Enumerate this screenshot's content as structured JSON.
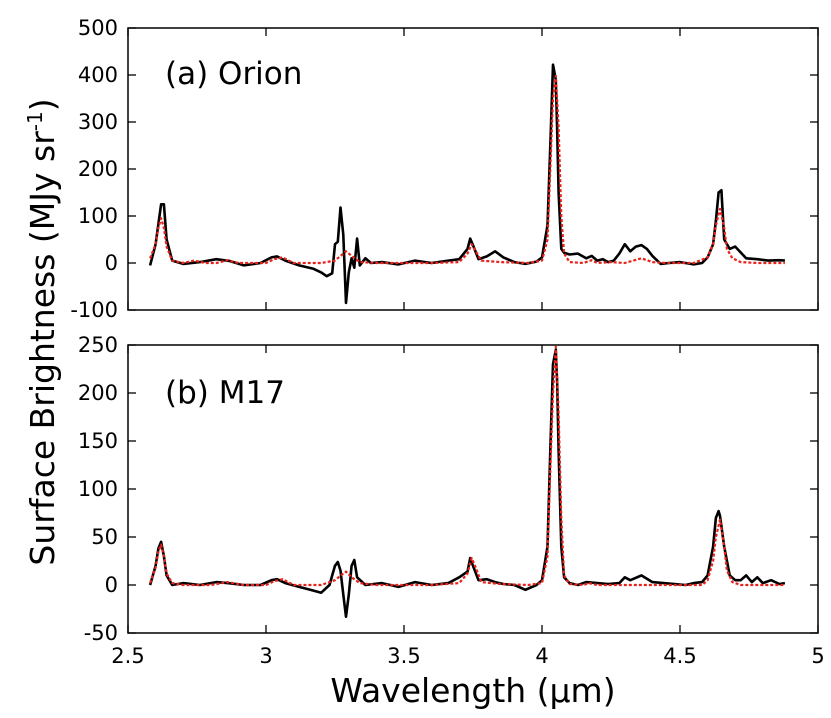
{
  "chart_data": [
    {
      "type": "line",
      "panel_label": "(a) Orion",
      "ylim": [
        -100,
        500
      ],
      "yticks": [
        "-100",
        "0",
        "100",
        "200",
        "300",
        "400",
        "500"
      ],
      "xlim": [
        2.5,
        5
      ],
      "grid": false,
      "series": [
        {
          "color": "#000000",
          "style": "solid",
          "x": [
            2.58,
            2.6,
            2.62,
            2.63,
            2.64,
            2.66,
            2.7,
            2.76,
            2.82,
            2.87,
            2.92,
            2.98,
            3.02,
            3.04,
            3.07,
            3.12,
            3.17,
            3.2,
            3.22,
            3.24,
            3.25,
            3.26,
            3.27,
            3.28,
            3.29,
            3.3,
            3.31,
            3.32,
            3.33,
            3.34,
            3.36,
            3.38,
            3.42,
            3.48,
            3.54,
            3.6,
            3.66,
            3.7,
            3.73,
            3.74,
            3.75,
            3.77,
            3.8,
            3.83,
            3.86,
            3.9,
            3.94,
            3.98,
            4.0,
            4.02,
            4.03,
            4.04,
            4.05,
            4.055,
            4.06,
            4.07,
            4.08,
            4.1,
            4.13,
            4.16,
            4.18,
            4.2,
            4.22,
            4.24,
            4.26,
            4.28,
            4.3,
            4.32,
            4.34,
            4.36,
            4.38,
            4.4,
            4.43,
            4.46,
            4.5,
            4.55,
            4.58,
            4.6,
            4.62,
            4.63,
            4.64,
            4.65,
            4.66,
            4.68,
            4.7,
            4.74,
            4.78,
            4.82,
            4.86,
            4.88
          ],
          "y": [
            -5,
            40,
            125,
            125,
            50,
            5,
            -2,
            2,
            8,
            4,
            -5,
            0,
            12,
            14,
            5,
            -5,
            -12,
            -20,
            -28,
            -22,
            40,
            45,
            118,
            60,
            -85,
            -20,
            10,
            -10,
            52,
            -5,
            10,
            0,
            2,
            -3,
            5,
            0,
            5,
            8,
            30,
            52,
            38,
            8,
            14,
            25,
            12,
            2,
            -2,
            3,
            12,
            80,
            250,
            422,
            390,
            280,
            150,
            30,
            22,
            18,
            20,
            10,
            15,
            5,
            8,
            2,
            5,
            20,
            40,
            25,
            35,
            38,
            30,
            15,
            -2,
            0,
            2,
            -3,
            0,
            12,
            40,
            90,
            150,
            155,
            50,
            30,
            35,
            10,
            8,
            5,
            6,
            5
          ]
        },
        {
          "color": "#e8221b",
          "style": "dotted",
          "x": [
            2.58,
            2.6,
            2.61,
            2.62,
            2.63,
            2.64,
            2.66,
            2.7,
            2.74,
            2.78,
            2.82,
            2.86,
            2.9,
            2.95,
            3.0,
            3.03,
            3.06,
            3.1,
            3.2,
            3.25,
            3.28,
            3.29,
            3.31,
            3.34,
            3.4,
            3.5,
            3.6,
            3.7,
            3.73,
            3.745,
            3.76,
            3.78,
            3.85,
            3.95,
            4.0,
            4.02,
            4.03,
            4.04,
            4.05,
            4.06,
            4.07,
            4.08,
            4.1,
            4.15,
            4.18,
            4.2,
            4.25,
            4.3,
            4.36,
            4.4,
            4.45,
            4.55,
            4.6,
            4.62,
            4.63,
            4.645,
            4.66,
            4.67,
            4.69,
            4.72,
            4.78,
            4.88
          ],
          "y": [
            10,
            40,
            75,
            95,
            75,
            35,
            5,
            0,
            5,
            0,
            0,
            6,
            0,
            0,
            0,
            8,
            12,
            0,
            0,
            5,
            20,
            25,
            15,
            2,
            0,
            0,
            0,
            2,
            20,
            40,
            25,
            5,
            2,
            0,
            5,
            50,
            200,
            350,
            398,
            290,
            100,
            20,
            2,
            0,
            6,
            0,
            2,
            0,
            10,
            2,
            0,
            0,
            12,
            40,
            80,
            115,
            75,
            30,
            10,
            2,
            0,
            0
          ]
        }
      ]
    },
    {
      "type": "line",
      "panel_label": "(b) M17",
      "ylim": [
        -50,
        250
      ],
      "yticks": [
        "-50",
        "0",
        "50",
        "100",
        "150",
        "200",
        "250"
      ],
      "xlim": [
        2.5,
        5
      ],
      "xticks": [
        "2.5",
        "3",
        "3.5",
        "4",
        "4.5",
        "5"
      ],
      "xlabel": "Wavelength (µm)",
      "grid": false,
      "series": [
        {
          "color": "#000000",
          "style": "solid",
          "x": [
            2.58,
            2.6,
            2.61,
            2.62,
            2.63,
            2.64,
            2.66,
            2.7,
            2.76,
            2.82,
            2.86,
            2.92,
            2.98,
            3.02,
            3.04,
            3.07,
            3.12,
            3.16,
            3.2,
            3.23,
            3.24,
            3.25,
            3.26,
            3.27,
            3.28,
            3.29,
            3.3,
            3.31,
            3.32,
            3.33,
            3.36,
            3.42,
            3.48,
            3.54,
            3.6,
            3.66,
            3.7,
            3.73,
            3.74,
            3.75,
            3.77,
            3.8,
            3.83,
            3.86,
            3.9,
            3.94,
            3.98,
            4.0,
            4.02,
            4.03,
            4.04,
            4.05,
            4.055,
            4.06,
            4.07,
            4.08,
            4.1,
            4.13,
            4.16,
            4.2,
            4.24,
            4.28,
            4.3,
            4.32,
            4.36,
            4.4,
            4.44,
            4.48,
            4.52,
            4.55,
            4.58,
            4.6,
            4.62,
            4.63,
            4.64,
            4.645,
            4.66,
            4.68,
            4.7,
            4.72,
            4.74,
            4.76,
            4.78,
            4.8,
            4.83,
            4.86,
            4.88
          ],
          "y": [
            0,
            20,
            38,
            45,
            30,
            10,
            0,
            2,
            0,
            3,
            2,
            0,
            0,
            5,
            6,
            2,
            -2,
            -5,
            -8,
            0,
            10,
            20,
            24,
            15,
            -10,
            -33,
            -10,
            20,
            26,
            8,
            0,
            2,
            -2,
            3,
            0,
            2,
            8,
            14,
            28,
            20,
            5,
            6,
            3,
            1,
            0,
            -5,
            0,
            5,
            40,
            140,
            230,
            245,
            210,
            140,
            40,
            8,
            2,
            0,
            3,
            2,
            1,
            2,
            8,
            5,
            10,
            3,
            2,
            1,
            0,
            2,
            3,
            10,
            40,
            70,
            77,
            72,
            40,
            10,
            5,
            5,
            10,
            3,
            8,
            2,
            5,
            1,
            2
          ]
        },
        {
          "color": "#e8221b",
          "style": "dotted",
          "x": [
            2.58,
            2.6,
            2.61,
            2.62,
            2.63,
            2.64,
            2.66,
            2.7,
            2.8,
            2.86,
            2.92,
            3.0,
            3.03,
            3.06,
            3.1,
            3.2,
            3.25,
            3.28,
            3.29,
            3.31,
            3.34,
            3.4,
            3.5,
            3.6,
            3.7,
            3.73,
            3.745,
            3.76,
            3.78,
            3.85,
            3.95,
            4.0,
            4.02,
            4.03,
            4.04,
            4.05,
            4.06,
            4.07,
            4.08,
            4.1,
            4.15,
            4.17,
            4.2,
            4.3,
            4.4,
            4.5,
            4.58,
            4.6,
            4.62,
            4.63,
            4.645,
            4.66,
            4.67,
            4.69,
            4.72,
            4.78,
            4.88
          ],
          "y": [
            2,
            18,
            35,
            42,
            30,
            12,
            2,
            0,
            0,
            3,
            0,
            0,
            4,
            6,
            0,
            0,
            5,
            12,
            14,
            8,
            2,
            0,
            0,
            0,
            2,
            12,
            28,
            18,
            3,
            1,
            0,
            2,
            30,
            120,
            200,
            248,
            180,
            70,
            10,
            1,
            0,
            2,
            0,
            0,
            0,
            0,
            0,
            5,
            25,
            50,
            68,
            40,
            15,
            3,
            0,
            0,
            0
          ]
        }
      ]
    }
  ],
  "ylabel": "Surface Brightness (MJy sr",
  "ylabel_sup": "-1",
  "ylabel_end": ")"
}
